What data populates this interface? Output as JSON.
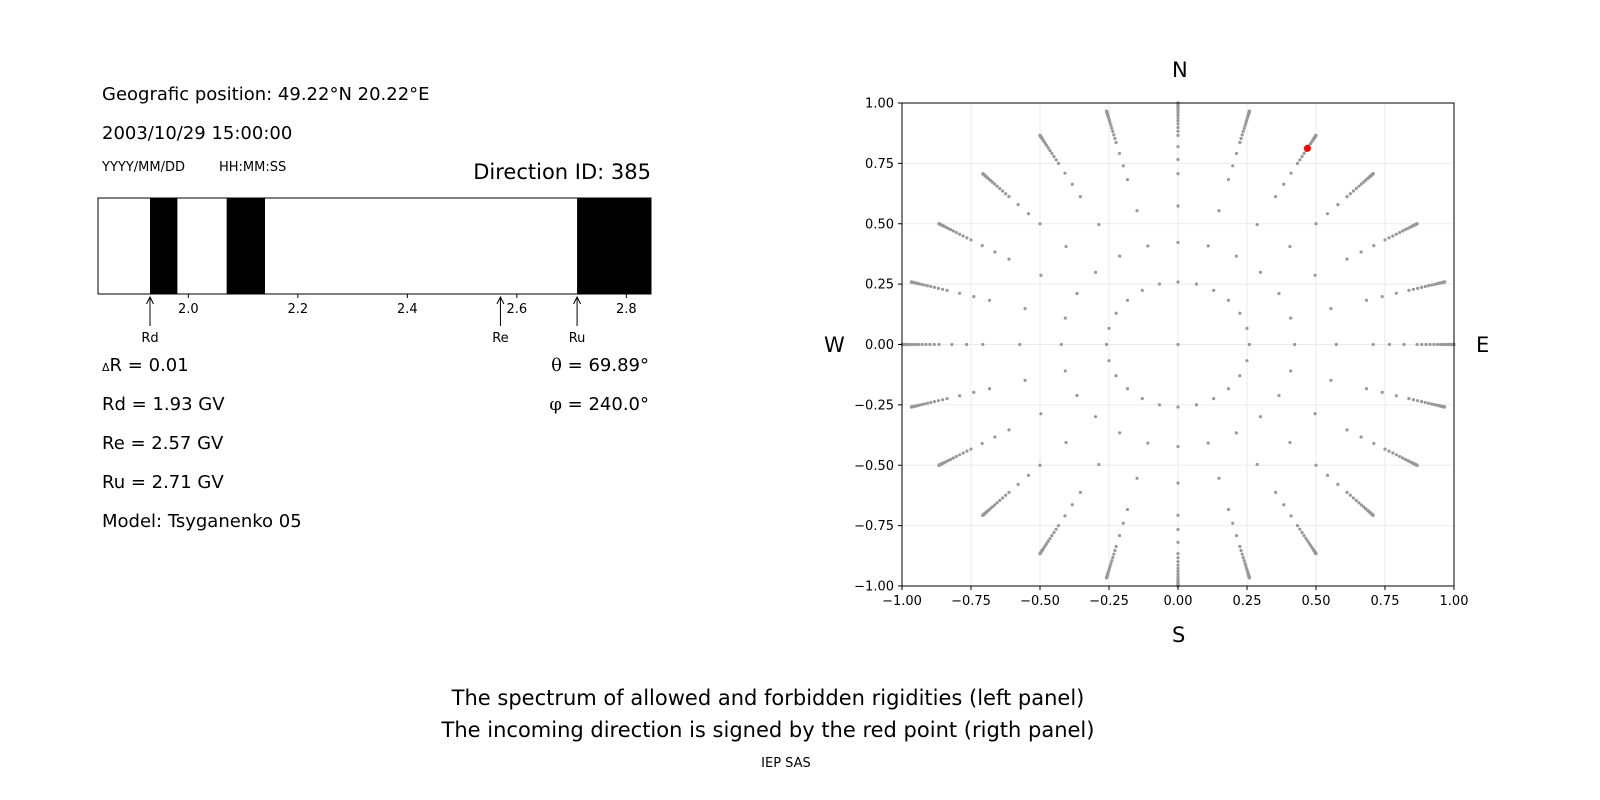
{
  "left_panel": {
    "position_line": "Geografic position: 49.22°N 20.22°E",
    "datetime": "2003/10/29 15:00:00",
    "date_format": "YYYY/MM/DD",
    "time_format": "HH:MM:SS",
    "direction_id": "Direction ID: 385",
    "delta_r": "R = 0.01",
    "delta_symbol": "Δ",
    "theta_symbol": "θ",
    "theta_value": " = 69.89°",
    "phi_symbol": "φ",
    "phi_value": " = 240.0°",
    "rd": "Rd = 1.93 GV",
    "re": "Re = 2.57 GV",
    "ru": "Ru = 2.71 GV",
    "model": "Model: Tsyganenko 05",
    "markers": {
      "rd": "Rd",
      "re": "Re",
      "ru": "Ru"
    }
  },
  "footer": {
    "line1": "The spectrum of allowed and forbidden rigidities (left panel)",
    "line2": "The incoming direction is signed by the red point (rigth panel)",
    "credit": "IEP SAS"
  },
  "compass": {
    "n": "N",
    "s": "S",
    "e": "E",
    "w": "W"
  },
  "chart_data": [
    {
      "type": "bar",
      "xlim": [
        1.835,
        2.845
      ],
      "xticks": [
        2.0,
        2.2,
        2.4,
        2.6,
        2.8
      ],
      "xtick_labels": [
        "2.0",
        "2.2",
        "2.4",
        "2.6",
        "2.8"
      ],
      "forbidden_bands": [
        [
          1.93,
          1.98
        ],
        [
          2.07,
          2.14
        ],
        [
          2.71,
          2.845
        ]
      ],
      "band_color": "#000000",
      "markers": [
        {
          "label": "Rd",
          "value": 1.93
        },
        {
          "label": "Re",
          "value": 2.57
        },
        {
          "label": "Ru",
          "value": 2.71
        }
      ]
    },
    {
      "type": "scatter",
      "xlim": [
        -1.0,
        1.0
      ],
      "ylim": [
        -1.0,
        1.0
      ],
      "xticks": [
        -1.0,
        -0.75,
        -0.5,
        -0.25,
        0.0,
        0.25,
        0.5,
        0.75,
        1.0
      ],
      "xtick_labels": [
        "−1.00",
        "−0.75",
        "−0.50",
        "−0.25",
        "0.00",
        "0.25",
        "0.50",
        "0.75",
        "1.00"
      ],
      "yticks": [
        -1.0,
        -0.75,
        -0.5,
        -0.25,
        0.0,
        0.25,
        0.5,
        0.75,
        1.0
      ],
      "ytick_labels": [
        "−1.00",
        "−0.75",
        "−0.50",
        "−0.25",
        "0.00",
        "0.25",
        "0.50",
        "0.75",
        "1.00"
      ],
      "grid": true,
      "grid_points": {
        "zenith_deg": [
          0,
          15,
          25,
          35,
          45,
          50,
          55,
          60,
          62,
          64,
          66,
          68,
          70,
          72,
          74,
          76,
          78,
          79,
          80,
          81,
          82,
          83,
          84,
          85,
          86,
          87,
          88,
          89,
          90
        ],
        "azimuth_step_deg": 15,
        "color": "#999999"
      },
      "highlight": {
        "x": 0.469,
        "y": 0.812,
        "color": "#ff0000"
      }
    }
  ]
}
